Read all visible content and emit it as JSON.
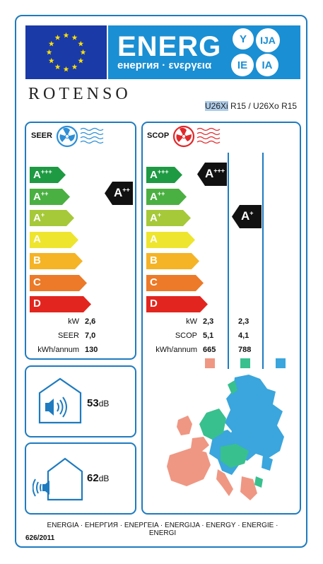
{
  "header": {
    "energ": "ENERG",
    "sub": "енергия · ενεργεια",
    "lang_codes": [
      "Y",
      "IJA",
      "IE",
      "IA"
    ]
  },
  "brand": "ROTENSO",
  "model": {
    "indoor": "U26Xi",
    "rest": " R15 / U26Xo R15"
  },
  "scale": [
    {
      "letter": "A",
      "sup": "+++",
      "color": "#1e9a43"
    },
    {
      "letter": "A",
      "sup": "++",
      "color": "#4bb042"
    },
    {
      "letter": "A",
      "sup": "+",
      "color": "#a6c939"
    },
    {
      "letter": "A",
      "sup": "",
      "color": "#eee52e"
    },
    {
      "letter": "B",
      "sup": "",
      "color": "#f5b426"
    },
    {
      "letter": "C",
      "sup": "",
      "color": "#ec7a28"
    },
    {
      "letter": "D",
      "sup": "",
      "color": "#e2261f"
    }
  ],
  "seer": {
    "title": "SEER",
    "indicator": {
      "letter": "A",
      "sup": "++"
    },
    "rows": [
      {
        "key": "kW",
        "value": "2,6"
      },
      {
        "key": "SEER",
        "value": "7,0"
      },
      {
        "key": "kWh/annum",
        "value": "130"
      }
    ]
  },
  "scop": {
    "title": "SCOP",
    "indicator_warm": {
      "letter": "A",
      "sup": "+++"
    },
    "indicator_avg": {
      "letter": "A",
      "sup": "+"
    },
    "keys": [
      "kW",
      "SCOP",
      "kWh/annum"
    ],
    "col_warm": [
      "2,3",
      "5,1",
      "665"
    ],
    "col_avg": [
      "2,3",
      "4,1",
      "788"
    ],
    "zone_colors": [
      "#ef9783",
      "#38c08e",
      "#3aa6dd"
    ]
  },
  "noise": {
    "indoor": "53",
    "outdoor": "62",
    "unit": "dB"
  },
  "footer": "ENERGIA · ЕНЕРГИЯ · ΕΝΕΡΓΕΙΑ · ENERGIJA · ENERGY · ENERGIE · ENERGI",
  "regulation": "626/2011"
}
